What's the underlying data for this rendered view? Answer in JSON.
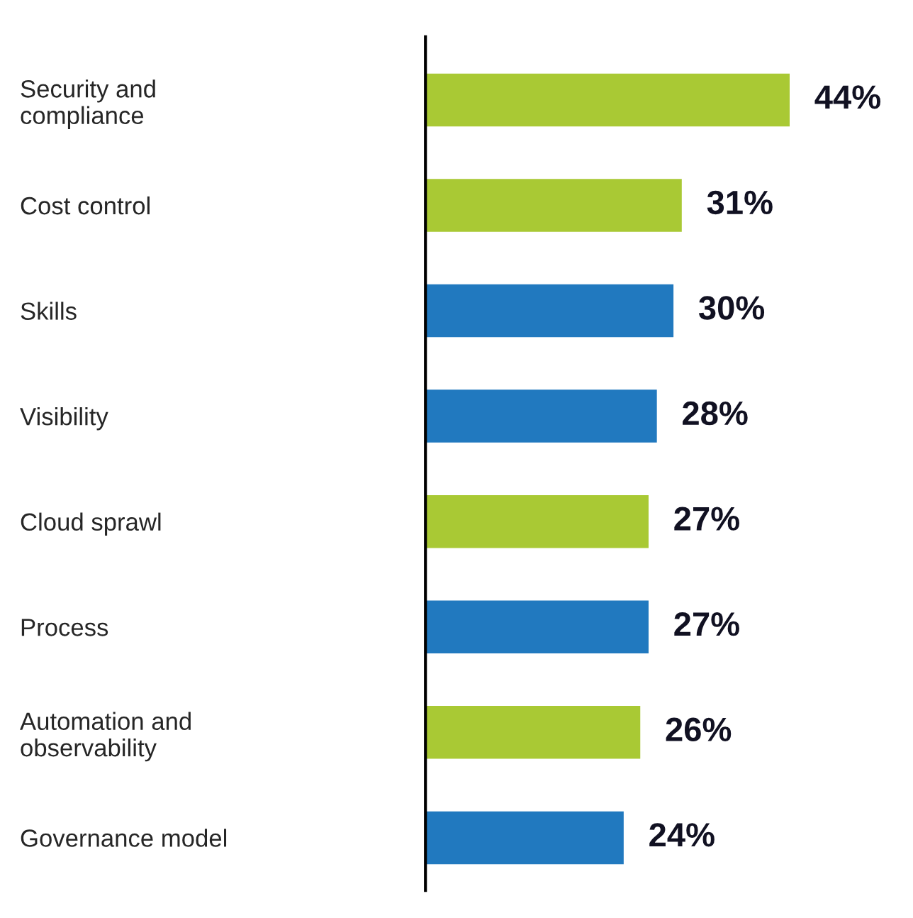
{
  "chart_data": {
    "type": "bar",
    "orientation": "horizontal",
    "categories": [
      "Security and\ncompliance",
      "Cost control",
      "Skills",
      "Visibility",
      "Cloud sprawl",
      "Process",
      "Automation and\nobservability",
      "Governance model"
    ],
    "values": [
      44,
      31,
      30,
      28,
      27,
      27,
      26,
      24
    ],
    "colors": [
      "#a9c934",
      "#a9c934",
      "#2179bf",
      "#2179bf",
      "#a9c934",
      "#2179bf",
      "#a9c934",
      "#2179bf"
    ],
    "value_labels": [
      "44%",
      "31%",
      "30%",
      "28%",
      "27%",
      "27%",
      "26%",
      "24%"
    ],
    "tick_labels": "y",
    "grid": false,
    "legend": false
  }
}
